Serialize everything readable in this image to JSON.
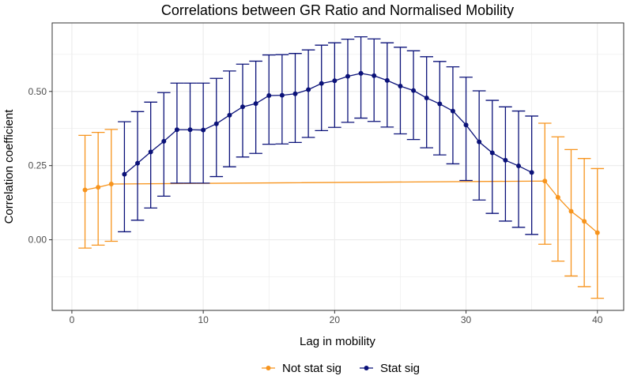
{
  "chart_data": {
    "type": "line",
    "title": "Correlations between GR Ratio and Normalised Mobility",
    "xlabel": "Lag in mobility",
    "ylabel": "Correlation coefficient",
    "xlim": [
      -1.5,
      42.0
    ],
    "ylim": [
      -0.238,
      0.731
    ],
    "x_ticks": [
      0,
      10,
      20,
      30,
      40
    ],
    "x_tick_labels": [
      "0",
      "10",
      "20",
      "30",
      "40"
    ],
    "y_ticks": [
      0.0,
      0.25,
      0.5
    ],
    "y_tick_labels": [
      "0.00",
      "0.25",
      "0.50"
    ],
    "grid": true,
    "legend_position": "bottom",
    "colors": {
      "not_sig": "#f7941d",
      "sig": "#0b1279",
      "grid": "#ebebeb",
      "panel_border": "#333333"
    },
    "series": [
      {
        "name": "Not stat sig",
        "color": "#f7941d",
        "points": [
          {
            "x": 1,
            "y": 0.168,
            "lo": -0.028,
            "hi": 0.352
          },
          {
            "x": 2,
            "y": 0.177,
            "lo": -0.018,
            "hi": 0.362
          },
          {
            "x": 3,
            "y": 0.188,
            "lo": -0.005,
            "hi": 0.372
          },
          {
            "x": 36,
            "y": 0.198,
            "lo": -0.015,
            "hi": 0.393
          },
          {
            "x": 37,
            "y": 0.143,
            "lo": -0.072,
            "hi": 0.347
          },
          {
            "x": 38,
            "y": 0.096,
            "lo": -0.122,
            "hi": 0.304
          },
          {
            "x": 39,
            "y": 0.062,
            "lo": -0.158,
            "hi": 0.274
          },
          {
            "x": 40,
            "y": 0.024,
            "lo": -0.197,
            "hi": 0.24
          }
        ]
      },
      {
        "name": "Stat sig",
        "color": "#0b1279",
        "points": [
          {
            "x": 4,
            "y": 0.221,
            "lo": 0.027,
            "hi": 0.398
          },
          {
            "x": 5,
            "y": 0.258,
            "lo": 0.066,
            "hi": 0.432
          },
          {
            "x": 6,
            "y": 0.296,
            "lo": 0.107,
            "hi": 0.464
          },
          {
            "x": 7,
            "y": 0.332,
            "lo": 0.147,
            "hi": 0.496
          },
          {
            "x": 8,
            "y": 0.371,
            "lo": 0.191,
            "hi": 0.528
          },
          {
            "x": 9,
            "y": 0.371,
            "lo": 0.191,
            "hi": 0.528
          },
          {
            "x": 10,
            "y": 0.37,
            "lo": 0.191,
            "hi": 0.528
          },
          {
            "x": 11,
            "y": 0.391,
            "lo": 0.213,
            "hi": 0.544
          },
          {
            "x": 12,
            "y": 0.42,
            "lo": 0.246,
            "hi": 0.569
          },
          {
            "x": 13,
            "y": 0.448,
            "lo": 0.279,
            "hi": 0.592
          },
          {
            "x": 14,
            "y": 0.459,
            "lo": 0.291,
            "hi": 0.602
          },
          {
            "x": 15,
            "y": 0.486,
            "lo": 0.322,
            "hi": 0.623
          },
          {
            "x": 16,
            "y": 0.487,
            "lo": 0.323,
            "hi": 0.624
          },
          {
            "x": 17,
            "y": 0.492,
            "lo": 0.328,
            "hi": 0.628
          },
          {
            "x": 18,
            "y": 0.506,
            "lo": 0.345,
            "hi": 0.64
          },
          {
            "x": 19,
            "y": 0.527,
            "lo": 0.368,
            "hi": 0.656
          },
          {
            "x": 20,
            "y": 0.536,
            "lo": 0.379,
            "hi": 0.664
          },
          {
            "x": 21,
            "y": 0.551,
            "lo": 0.396,
            "hi": 0.676
          },
          {
            "x": 22,
            "y": 0.561,
            "lo": 0.41,
            "hi": 0.684
          },
          {
            "x": 23,
            "y": 0.553,
            "lo": 0.399,
            "hi": 0.677
          },
          {
            "x": 24,
            "y": 0.537,
            "lo": 0.38,
            "hi": 0.664
          },
          {
            "x": 25,
            "y": 0.518,
            "lo": 0.357,
            "hi": 0.649
          },
          {
            "x": 26,
            "y": 0.503,
            "lo": 0.338,
            "hi": 0.637
          },
          {
            "x": 27,
            "y": 0.478,
            "lo": 0.31,
            "hi": 0.617
          },
          {
            "x": 28,
            "y": 0.458,
            "lo": 0.286,
            "hi": 0.601
          },
          {
            "x": 29,
            "y": 0.434,
            "lo": 0.256,
            "hi": 0.583
          },
          {
            "x": 30,
            "y": 0.387,
            "lo": 0.2,
            "hi": 0.548
          },
          {
            "x": 31,
            "y": 0.33,
            "lo": 0.134,
            "hi": 0.502
          },
          {
            "x": 32,
            "y": 0.293,
            "lo": 0.089,
            "hi": 0.47
          },
          {
            "x": 33,
            "y": 0.268,
            "lo": 0.063,
            "hi": 0.448
          },
          {
            "x": 34,
            "y": 0.249,
            "lo": 0.042,
            "hi": 0.434
          },
          {
            "x": 35,
            "y": 0.227,
            "lo": 0.018,
            "hi": 0.417
          }
        ]
      }
    ]
  }
}
